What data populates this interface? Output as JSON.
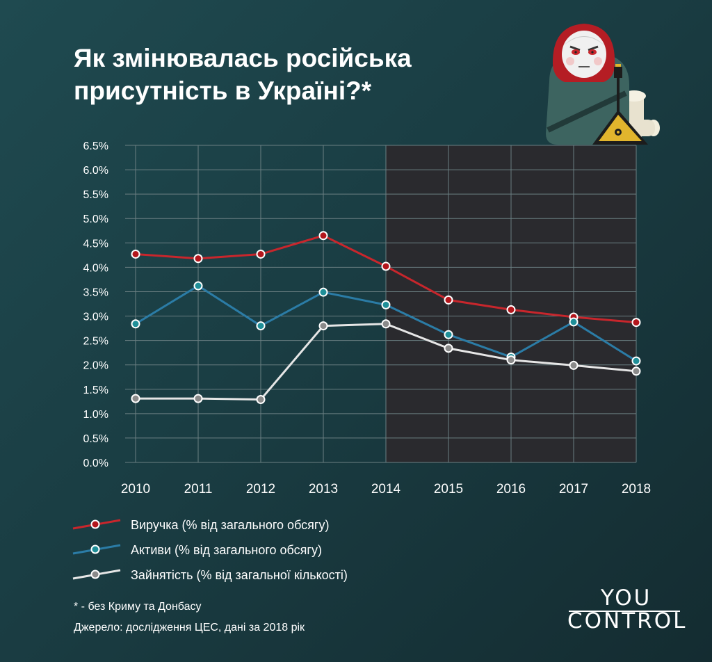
{
  "header": {
    "title": "Як змінювалась російська присутність в Україні?*"
  },
  "chart_data": {
    "type": "line",
    "x": [
      "2010",
      "2011",
      "2012",
      "2013",
      "2014",
      "2015",
      "2016",
      "2017",
      "2018"
    ],
    "ylim": [
      0,
      6.5
    ],
    "yticks": [
      "0.0%",
      "0.5%",
      "1.0%",
      "1.5%",
      "2.0%",
      "2.5%",
      "3.0%",
      "3.5%",
      "4.0%",
      "4.5%",
      "5.0%",
      "5.5%",
      "6.0%",
      "6.5%"
    ],
    "shaded_from": "2014",
    "grid": true,
    "legend_position": "bottom-left",
    "series": [
      {
        "name": "Виручка (% від загального обсягу)",
        "color": "#c8262c",
        "marker": "#b3161c",
        "values": [
          4.27,
          4.18,
          4.27,
          4.65,
          4.02,
          3.33,
          3.13,
          2.98,
          2.87
        ]
      },
      {
        "name": "Активи (% від загального обсягу)",
        "color": "#2b7ca6",
        "marker": "#1f8f98",
        "values": [
          2.84,
          3.62,
          2.8,
          3.49,
          3.23,
          2.62,
          2.16,
          2.88,
          2.08
        ]
      },
      {
        "name": "Зайнятість (% від загальної кількості)",
        "color": "#e6e6e6",
        "marker": "#8a8a8a",
        "values": [
          1.31,
          1.31,
          1.29,
          2.8,
          2.84,
          2.34,
          2.1,
          1.99,
          1.87
        ]
      }
    ]
  },
  "footer": {
    "footnote": "* - без Криму та Донбасу",
    "source": "Джерело: дослідження ЦЕС, дані за 2018 рік",
    "logo_line1": "YOU",
    "logo_line2": "CONTROL"
  }
}
